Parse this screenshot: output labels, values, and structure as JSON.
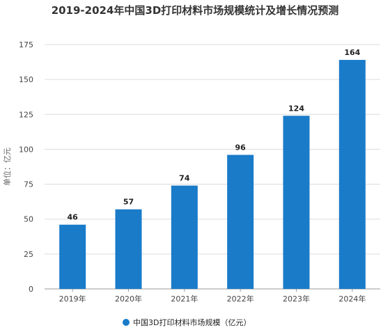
{
  "chart_data": {
    "type": "bar",
    "title": "2019-2024年中国3D打印材料市场规模统计及增长情况预测",
    "ylabel": "单位：亿元",
    "xlabel": "",
    "categories": [
      "2019年",
      "2020年",
      "2021年",
      "2022年",
      "2023年",
      "2024年"
    ],
    "series": [
      {
        "name": "中国3D打印材料市场规模（亿元）",
        "values": [
          46,
          57,
          74,
          96,
          124,
          164
        ]
      }
    ],
    "ylim": [
      0,
      175
    ],
    "yticks": [
      0,
      25,
      50,
      75,
      100,
      125,
      150,
      175
    ],
    "grid": true,
    "legend": "bottom",
    "bar_color": "#1a7bc9"
  }
}
